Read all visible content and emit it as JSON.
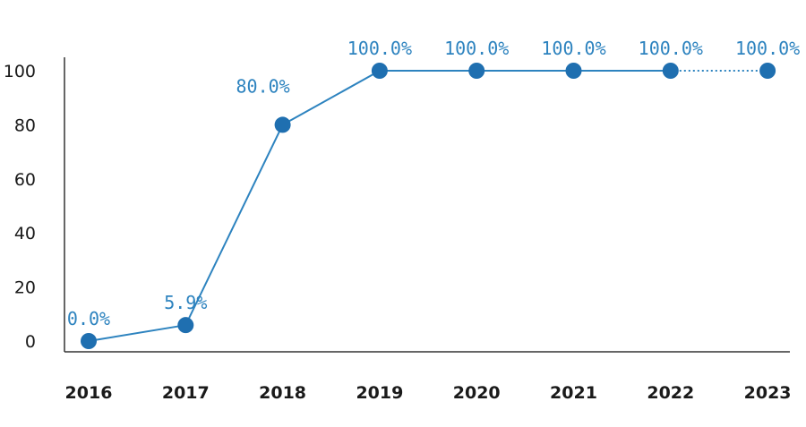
{
  "chart_data": {
    "type": "line",
    "title": "",
    "xlabel": "",
    "ylabel": "",
    "categories": [
      "2016",
      "2017",
      "2018",
      "2019",
      "2020",
      "2021",
      "2022",
      "2023"
    ],
    "series": [
      {
        "values": [
          0.0,
          5.9,
          80.0,
          100.0,
          100.0,
          100.0,
          100.0,
          100.0
        ],
        "data_labels": [
          "0.0%",
          "5.9%",
          "80.0%",
          "100.0%",
          "100.0%",
          "100.0%",
          "100.0%",
          "100.0%"
        ],
        "color": "#2d83bf",
        "marker_color": "#1f6fb0",
        "dotted_from_index": 6
      }
    ],
    "ylim": [
      0,
      100
    ],
    "yticks": [
      0,
      20,
      40,
      60,
      80,
      100
    ],
    "ytick_labels": [
      "0",
      "20",
      "40",
      "60",
      "80",
      "100"
    ],
    "grid": false,
    "legend": "none"
  }
}
